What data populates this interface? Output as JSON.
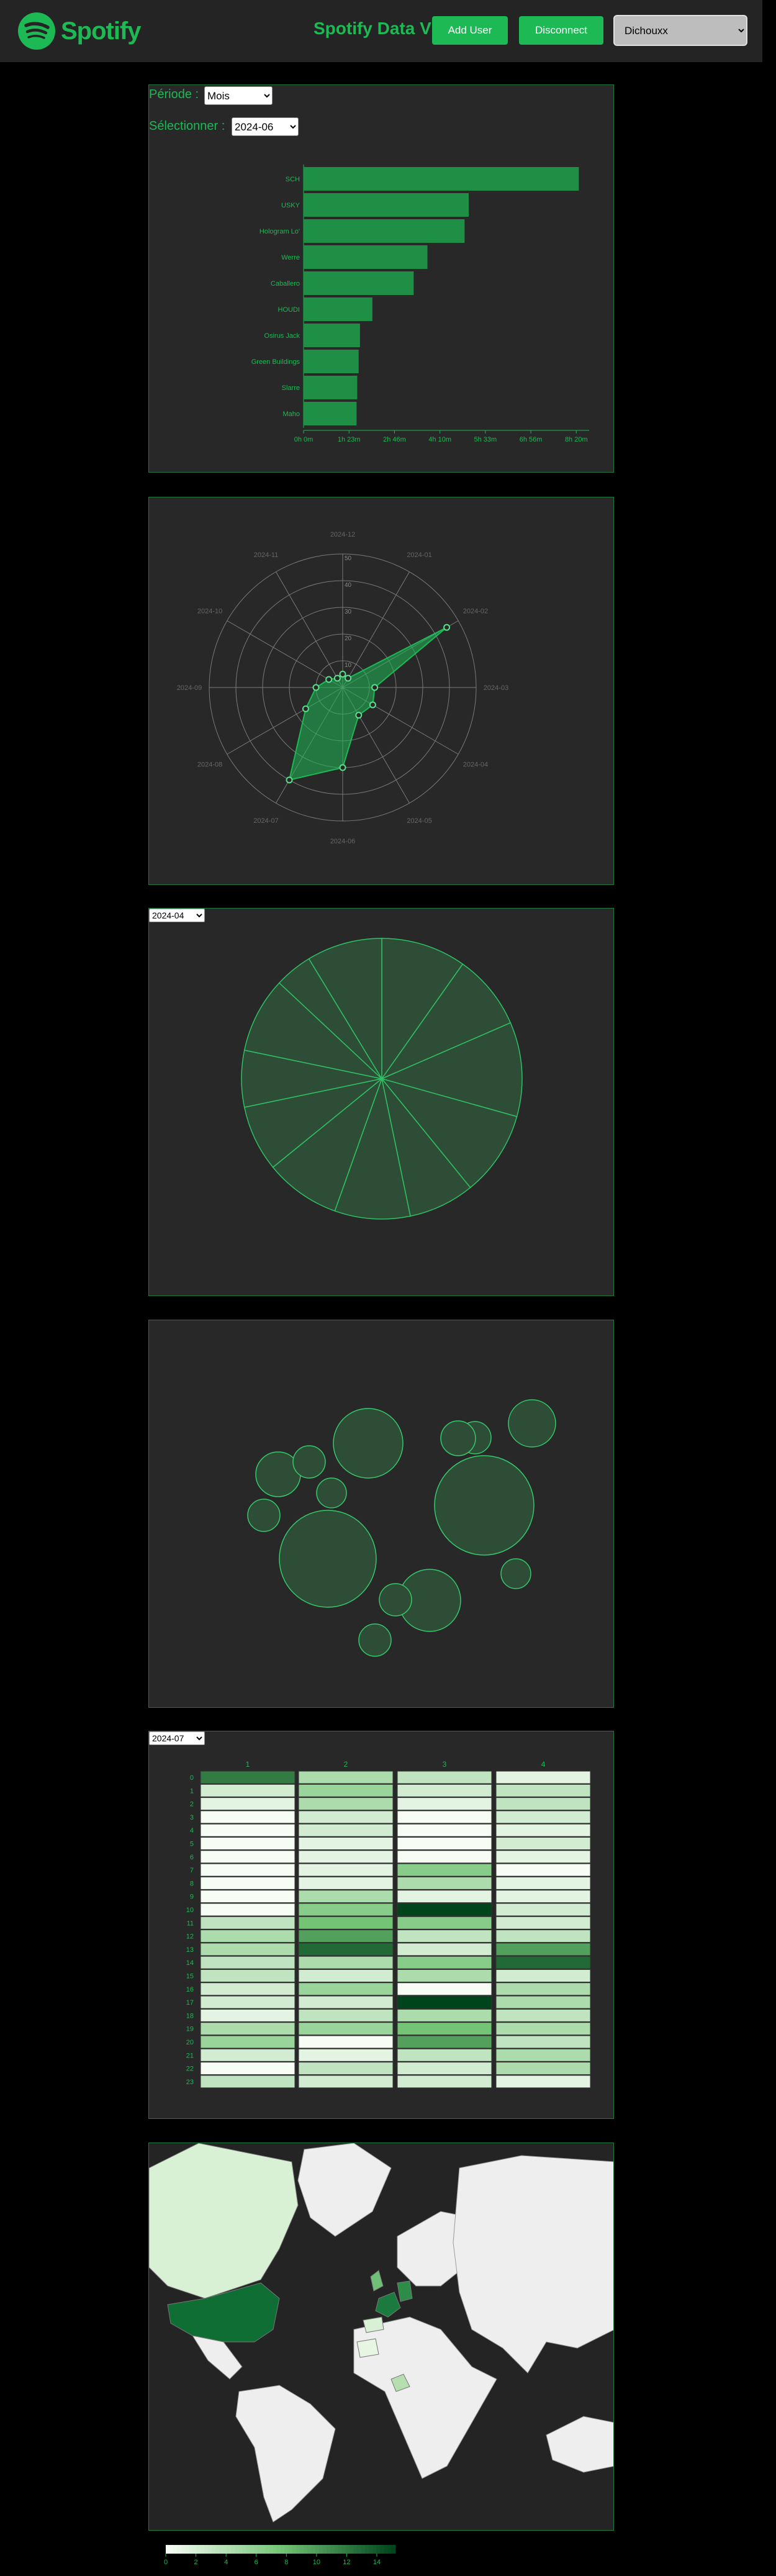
{
  "header": {
    "logo_text": "Spotify",
    "app_title": "Spotify Data V",
    "add_user_label": "Add User",
    "disconnect_label": "Disconnect",
    "user_select_value": "Dichouxx"
  },
  "colors": {
    "accent": "#1db954",
    "panel": "#282828",
    "bar": "#1e8f45"
  },
  "bar_panel": {
    "period_label": "Période :",
    "period_value": "Mois",
    "select_label": "Sélectionner :",
    "select_value": "2024-06"
  },
  "radar_panel": {},
  "pie_panel": {
    "select_value": "2024-04"
  },
  "heatmap_panel": {
    "select_value": "2024-07"
  },
  "chart_data": [
    {
      "type": "bar",
      "orientation": "horizontal",
      "categories": [
        "SCH",
        "USKY",
        "Hologram Lo'",
        "Werre",
        "Caballero",
        "HOUDI",
        "Osirus Jack",
        "Green Buildings",
        "Slarre",
        "Maho"
      ],
      "values": [
        400,
        240,
        234,
        180,
        160,
        100,
        82,
        80,
        78,
        77
      ],
      "x_ticks": [
        "0h 0m",
        "1h 23m",
        "2h 46m",
        "4h 10m",
        "5h 33m",
        "6h 56m",
        "8h 20m"
      ],
      "xlim": [
        0,
        415
      ]
    },
    {
      "type": "radar",
      "axes": [
        "2024-12",
        "2024-01",
        "2024-02",
        "2024-03",
        "2024-04",
        "2024-05",
        "2024-06",
        "2024-07",
        "2024-08",
        "2024-09",
        "2024-10",
        "2024-11"
      ],
      "values": [
        5,
        4,
        45,
        12,
        13,
        12,
        30,
        40,
        16,
        10,
        6,
        4
      ],
      "rlim": [
        0,
        50
      ],
      "r_ticks": [
        "10",
        "20",
        "30",
        "40",
        "50"
      ]
    },
    {
      "type": "pie",
      "values": [
        9,
        8,
        10,
        9,
        7,
        8,
        8,
        7,
        6,
        8,
        4,
        8
      ]
    },
    {
      "type": "bubble",
      "radii": [
        56,
        80,
        78,
        36,
        50,
        26,
        38,
        24,
        26,
        26,
        28,
        24,
        26,
        26
      ]
    },
    {
      "type": "heatmap",
      "columns": [
        "1",
        "2",
        "3",
        "4"
      ],
      "rows": [
        "0",
        "1",
        "2",
        "3",
        "4",
        "5",
        "6",
        "7",
        "8",
        "9",
        "10",
        "11",
        "12",
        "13",
        "14",
        "15",
        "16",
        "17",
        "18",
        "19",
        "20",
        "21",
        "22",
        "23"
      ],
      "values": [
        [
          11,
          4,
          3,
          1
        ],
        [
          2,
          5,
          2,
          3
        ],
        [
          1,
          4,
          1,
          3
        ],
        [
          0,
          2,
          0,
          2
        ],
        [
          0,
          2,
          0,
          1
        ],
        [
          0,
          1,
          0,
          2
        ],
        [
          0,
          1,
          0,
          1
        ],
        [
          0,
          1,
          6,
          0
        ],
        [
          0,
          1,
          4,
          1
        ],
        [
          0,
          4,
          1,
          1
        ],
        [
          0,
          6,
          14,
          2
        ],
        [
          3,
          7,
          6,
          2
        ],
        [
          4,
          9,
          3,
          3
        ],
        [
          4,
          12,
          2,
          9
        ],
        [
          3,
          4,
          6,
          12
        ],
        [
          3,
          2,
          4,
          2
        ],
        [
          2,
          5,
          0,
          4
        ],
        [
          2,
          2,
          14,
          4
        ],
        [
          1,
          3,
          4,
          3
        ],
        [
          4,
          5,
          7,
          4
        ],
        [
          5,
          0,
          9,
          3
        ],
        [
          2,
          1,
          3,
          4
        ],
        [
          0,
          3,
          2,
          4
        ],
        [
          3,
          2,
          2,
          1
        ]
      ],
      "vmax": 14
    },
    {
      "type": "choropleth",
      "legend_ticks": [
        "0",
        "2",
        "4",
        "6",
        "8",
        "10",
        "12",
        "14"
      ],
      "vmax": 14
    }
  ]
}
